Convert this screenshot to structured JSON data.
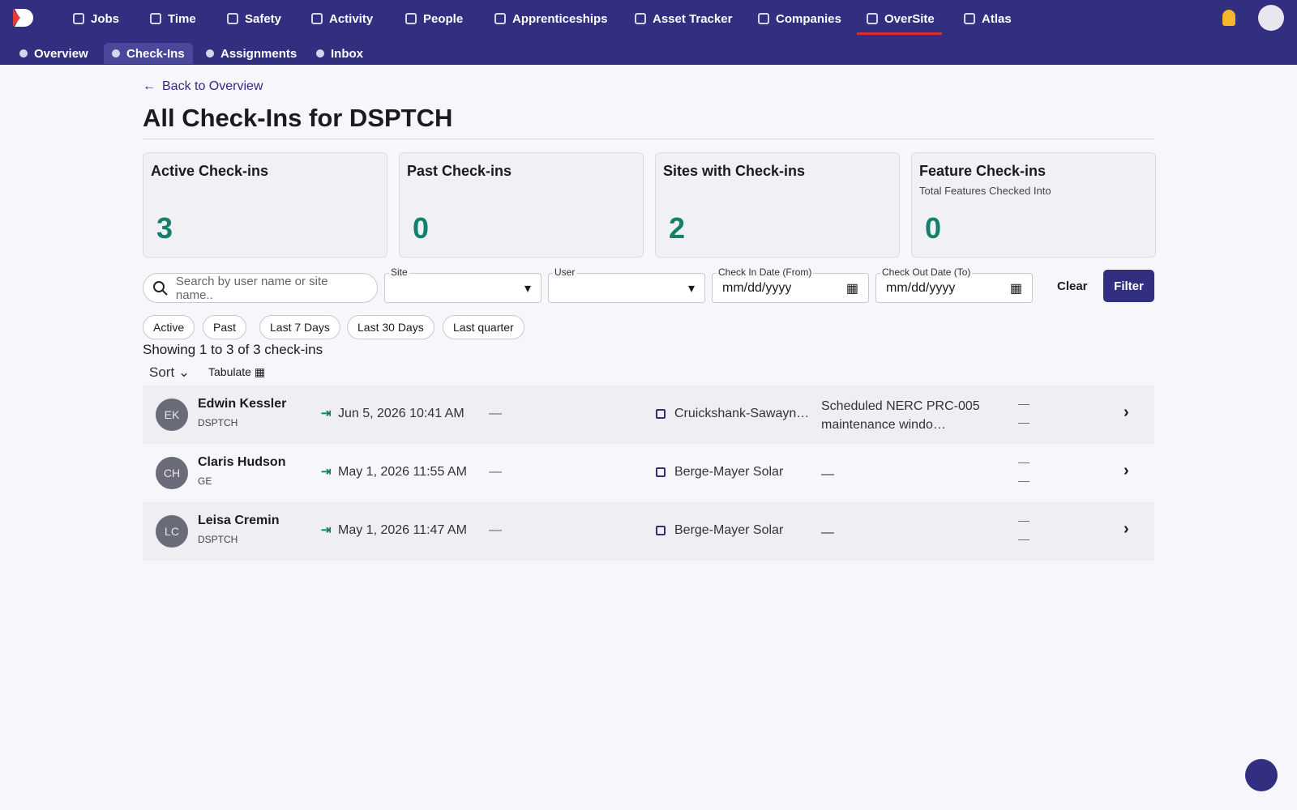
{
  "nav": {
    "items": [
      "Jobs",
      "Time",
      "Safety",
      "Activity",
      "People",
      "Apprenticeships",
      "Asset Tracker",
      "Companies",
      "OverSite",
      "Atlas"
    ],
    "active_index": 8
  },
  "subnav": {
    "items": [
      "Overview",
      "Check-Ins",
      "Assignments",
      "Inbox"
    ],
    "active_index": 1
  },
  "back_link": "Back to Overview",
  "title": "All Check-Ins for DSPTCH",
  "stats": [
    {
      "label": "Active Check-ins",
      "value": 3
    },
    {
      "label": "Past Check-ins",
      "value": 0
    },
    {
      "label": "Sites with Check-ins",
      "value": 2
    },
    {
      "label": "Feature Check-ins",
      "sublabel": "Total Features Checked Into",
      "value": 0
    }
  ],
  "filters": {
    "search_placeholder": "Search by user name or site name..",
    "site_label": "Site",
    "user_label": "User",
    "check_in": {
      "label": "Check In Date (From)",
      "placeholder": "mm/dd/yyyy"
    },
    "check_out": {
      "label": "Check Out Date (To)",
      "placeholder": "mm/dd/yyyy"
    },
    "clear": "Clear",
    "filter": "Filter"
  },
  "chips": [
    "Active",
    "Past",
    "Last 7 Days",
    "Last 30 Days",
    "Last quarter"
  ],
  "summary": "Showing 1 to 3 of 3 check-ins",
  "sort": "Sort",
  "tabulate": "Tabulate",
  "rows": [
    {
      "initials": "EK",
      "name": "Edwin Kessler",
      "company": "DSPTCH",
      "checked_in": "Jun 5, 2026 10:41 AM",
      "checked_out": "—",
      "site": "Cruickshank-Sawayn…",
      "notes": "Scheduled NERC PRC-005 maintenance windo…",
      "features": [
        "—",
        "—"
      ]
    },
    {
      "initials": "CH",
      "name": "Claris Hudson",
      "company": "GE",
      "checked_in": "May 1, 2026 11:55 AM",
      "checked_out": "—",
      "site": "Berge-Mayer Solar",
      "notes": "—",
      "features": [
        "—",
        "—"
      ]
    },
    {
      "initials": "LC",
      "name": "Leisa Cremin",
      "company": "DSPTCH",
      "checked_in": "May 1, 2026 11:47 AM",
      "checked_out": "—",
      "site": "Berge-Mayer Solar",
      "notes": "—",
      "features": [
        "—",
        "—"
      ]
    }
  ]
}
